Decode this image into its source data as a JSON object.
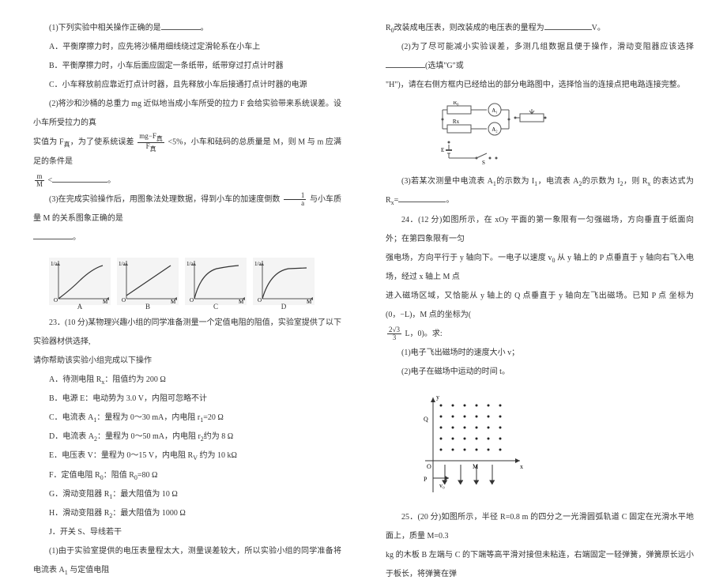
{
  "left": {
    "q1": "(1)下列实验中相关操作正确的是",
    "q1_opts": {
      "A": "A．平衡摩擦力时，应先将沙桶用细线绕过定滑轮系在小车上",
      "B": "B．平衡摩擦力时，小车后面应固定一条纸带，纸带穿过打点计时器",
      "C": "C．小车释放前应靠近打点计时器，且先释放小车后接通打点计时器的电源"
    },
    "q2a": "(2)将沙和沙桶的总重力 mg 近似地当成小车所受的拉力 F 会给实验带来系统误差。设小车所受拉力的真",
    "q2b_a": "实值为 F",
    "q2b_b": "，为了使系统误差",
    "q2b_c": " <5%，小车和砝码的总质量是 M，则 M 与 m 应满足的条件是",
    "q2b_frac1_num": "mg−F",
    "q2b_frac1_sub": "真",
    "q2b_frac1_den": "F",
    "q2b_frac2_num": "m",
    "q2b_frac2_den": "M",
    "q3a": "(3)在完成实验操作后，用图象法处理数据，得到小车的加速度倒数",
    "q3b": "与小车质量 M 的关系图象正确的是",
    "q3_frac_num": "1",
    "q3_frac_den": "a",
    "graphs": [
      {
        "label": "A",
        "type": "curve-concave-up"
      },
      {
        "label": "B",
        "type": "line-up"
      },
      {
        "label": "C",
        "type": "curve-concave-down"
      },
      {
        "label": "D",
        "type": "curve-saturate"
      }
    ],
    "axis_y_label": "1/a",
    "axis_x_label": "M",
    "axis_origin": "O",
    "q23a": "23．(10 分)某物理兴趣小组的同学准备测量一个定值电阻的阻值，实验室提供了以下实验器材供选择,",
    "q23b": "请你帮助该实验小组完成以下操作",
    "items": {
      "A": "A．待测电阻 R<sub>x</sub>：阻值约为 200 Ω",
      "B": "B．电源 E：电动势为 3.0 V，内阻可忽略不计",
      "C": "C．电流表 A<sub>1</sub>：量程为 0～30 mA，内电阻 r<sub>1</sub>=20 Ω",
      "D": "D．电流表 A<sub>2</sub>：量程为 0～50 mA，内电阻 r<sub>2</sub>约为 8 Ω",
      "E": "E．电压表 V：量程为 0～15 V，内电阻 R<sub>V</sub> 约为 10 kΩ",
      "F": "F．定值电阻 R<sub>0</sub>：阻值 R<sub>0</sub>=80 Ω",
      "G": "G．滑动变阻器 R<sub>1</sub>：最大阻值为 10 Ω",
      "H": "H．滑动变阻器 R<sub>2</sub>：最大阻值为 1000 Ω",
      "J": "J．开关 S、导线若干"
    },
    "sub1": "(1)由于实验室提供的电压表量程太大，测量误差较大，所以实验小组的同学准备将电流表 A<sub>1</sub> 与定值电阻"
  },
  "right": {
    "r0_line": "R<sub>0</sub>改装成电压表，则改装成的电压表的量程为",
    "r0_unit": "V。",
    "sub2a": "(2)为了尽可能减小实验误差，多测几组数据且便于操作，滑动变阻器应该选择",
    "sub2b": "(选填\"G\"或",
    "sub2c": "\"H\")，请在右侧方框内已经给出的部分电路图中，选择恰当的连接点把电路连接完整。",
    "circuit": {
      "labels": {
        "R0": "R₀",
        "A1": "A₁",
        "Rx": "Rx",
        "A2": "A₂",
        "E": "E",
        "S": "S"
      },
      "stroke": "#555555"
    },
    "sub3a": "(3)若某次测量中电流表 A<sub>1</sub>的示数为 I<sub>1</sub>，电流表 A<sub>2</sub>的示数为 I<sub>2</sub>，则 R<sub>x</sub> 的表达式为 R<sub>x</sub>=",
    "q24a": "24．(12 分)如图所示，在 xOy 平面的第一象限有一匀强磁场，方向垂直于纸面向外；在第四象限有一匀",
    "q24b": "强电场，方向平行于 y 轴向下。一电子以速度 v<sub>0</sub> 从 y 轴上的 P 点垂直于 y 轴向右飞入电场，经过 x 轴上 M 点",
    "q24c": "进入磁场区域，又恰能从 y 轴上的 Q 点垂直于 y 轴向左飞出磁场。已知 P 点",
    "q24d": "坐标为(0，−L)，M 点的坐标为(",
    "q24_frac_num": "2√3",
    "q24_frac_den": "3",
    "q24e": " L，0)。求:",
    "q24_sub1": "(1)电子飞出磁场时的速度大小 v；",
    "q24_sub2": "(2)电子在磁场中运动的时间 t。",
    "field": {
      "dot_color": "#222222",
      "axis_color": "#333333",
      "labels": {
        "y": "y",
        "x": "x",
        "O": "O",
        "Q": "Q",
        "M": "M",
        "P": "P",
        "v0": "v₀"
      }
    },
    "q25a": "25．(20 分)如图所示，半径 R=0.8 m 的四分之一光滑圆弧轨道 C 固定在光滑水平地面上，质量 M=0.3",
    "q25b": "kg 的木板 B 左端与 C 的下端等高平滑对接但未粘连，右端固定一轻弹簧，弹簧原长远小于板长，将弹簧在弹"
  },
  "colors": {
    "text": "#333333",
    "graph_stroke": "#555555",
    "graph_fill": "#d8d8d8",
    "background": "#ffffff"
  }
}
